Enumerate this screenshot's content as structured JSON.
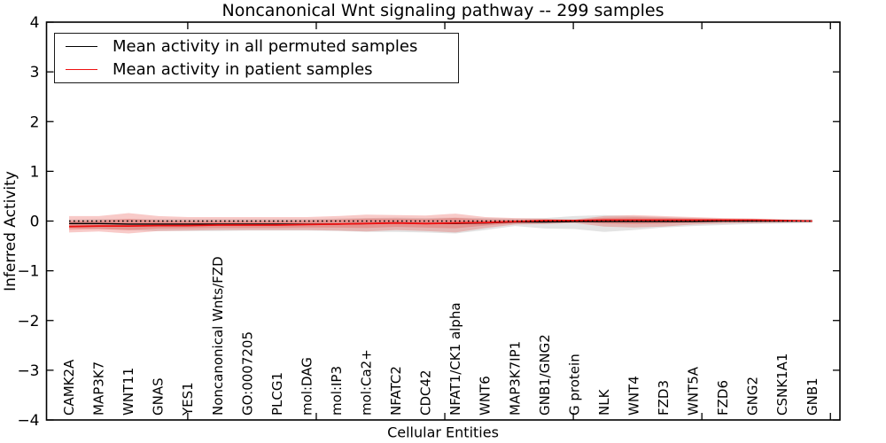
{
  "chart_data": {
    "type": "line",
    "title": "Noncanonical Wnt signaling pathway -- 299 samples",
    "xlabel": "Cellular Entities",
    "ylabel": "Inferred Activity",
    "ylim": [
      -4,
      4
    ],
    "grid": false,
    "legend_position": "upper left",
    "zero_reference_line": 0,
    "y_ticks": [
      4,
      3,
      2,
      1,
      0,
      -1,
      -2,
      -3,
      -4
    ],
    "y_tick_labels": [
      "4",
      "3",
      "2",
      "1",
      "0",
      "−1",
      "−2",
      "−3",
      "−4"
    ],
    "categories": [
      "CAMK2A",
      "MAP3K7",
      "WNT11",
      "GNAS",
      "YES1",
      "Noncanonical Wnts/FZD",
      "GO:0007205",
      "PLCG1",
      "mol:DAG",
      "mol:IP3",
      "mol:Ca2+",
      "NFATC2",
      "CDC42",
      "NFAT1/CK1 alpha",
      "WNT6",
      "MAP3K7IP1",
      "GNB1/GNG2",
      "G protein",
      "NLK",
      "WNT4",
      "FZD3",
      "WNT5A",
      "FZD6",
      "GNG2",
      "CSNK1A1",
      "GNB1"
    ],
    "series": [
      {
        "name": "Mean activity in all permuted samples",
        "color": "#000000",
        "band_color": "#9a9a9a",
        "band_opacity": 0.28,
        "values": [
          -0.05,
          -0.05,
          -0.06,
          -0.06,
          -0.06,
          -0.06,
          -0.06,
          -0.06,
          -0.06,
          -0.06,
          -0.05,
          -0.04,
          -0.05,
          -0.05,
          -0.04,
          -0.02,
          -0.02,
          -0.01,
          -0.01,
          -0.01,
          -0.01,
          -0.01,
          0.0,
          0.0,
          0.0,
          0.0
        ],
        "band_upper": [
          0.03,
          0.04,
          0.04,
          0.04,
          0.04,
          0.04,
          0.04,
          0.04,
          0.04,
          0.05,
          0.06,
          0.07,
          0.06,
          0.07,
          0.06,
          0.05,
          0.06,
          0.1,
          0.12,
          0.1,
          0.08,
          0.06,
          0.05,
          0.05,
          0.04,
          0.04
        ],
        "band_lower": [
          -0.14,
          -0.16,
          -0.18,
          -0.2,
          -0.2,
          -0.2,
          -0.19,
          -0.19,
          -0.19,
          -0.2,
          -0.22,
          -0.22,
          -0.23,
          -0.25,
          -0.18,
          -0.1,
          -0.15,
          -0.16,
          -0.22,
          -0.18,
          -0.13,
          -0.1,
          -0.08,
          -0.06,
          -0.05,
          -0.04
        ]
      },
      {
        "name": "Mean activity in patient samples",
        "color": "#ee1111",
        "band_color": "#e53a35",
        "band_opacity": 0.27,
        "values": [
          -0.11,
          -0.1,
          -0.1,
          -0.09,
          -0.09,
          -0.08,
          -0.08,
          -0.08,
          -0.07,
          -0.06,
          -0.05,
          -0.04,
          -0.05,
          -0.04,
          -0.03,
          -0.01,
          0.01,
          0.01,
          0.02,
          0.02,
          0.02,
          0.02,
          0.02,
          0.02,
          0.01,
          0.0
        ],
        "band_upper": [
          0.1,
          0.1,
          0.16,
          0.1,
          0.08,
          0.08,
          0.08,
          0.08,
          0.08,
          0.1,
          0.13,
          0.12,
          0.11,
          0.15,
          0.08,
          0.06,
          0.05,
          0.03,
          0.1,
          0.12,
          0.1,
          0.08,
          0.06,
          0.05,
          0.03,
          0.01
        ],
        "band_lower": [
          -0.23,
          -0.21,
          -0.25,
          -0.2,
          -0.19,
          -0.18,
          -0.18,
          -0.18,
          -0.18,
          -0.19,
          -0.21,
          -0.18,
          -0.2,
          -0.23,
          -0.14,
          -0.07,
          -0.06,
          -0.04,
          -0.11,
          -0.13,
          -0.11,
          -0.07,
          -0.05,
          -0.04,
          -0.03,
          -0.01
        ]
      }
    ]
  }
}
